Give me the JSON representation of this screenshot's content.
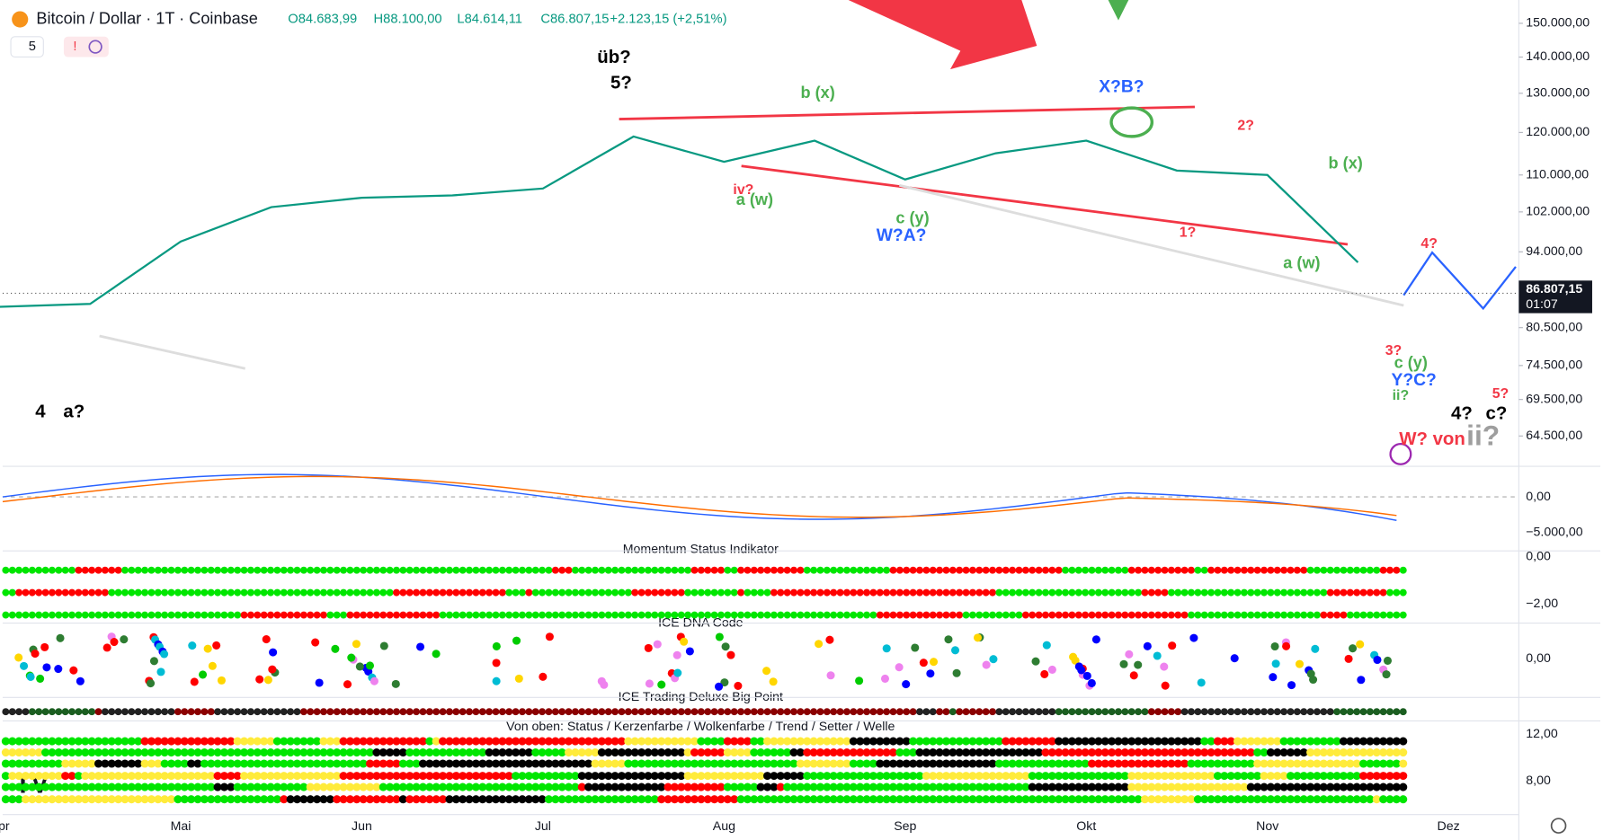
{
  "header": {
    "symbol": "Bitcoin / Dollar · 1T · Coinbase",
    "ohlc": [
      "O84.683,99",
      "H88.100,00",
      "L84.614,11",
      "C86.807,15",
      "+2.123,15 (+2,51%)"
    ],
    "interval_badge": "5",
    "alert": "!"
  },
  "chart_data": {
    "type": "line",
    "log_scale": true,
    "grid": false,
    "categories": [
      "Apr",
      null,
      "Mai",
      null,
      "Jun",
      null,
      "Jul",
      null,
      "Aug",
      null,
      "Sep",
      null,
      "Okt",
      null,
      "Nov",
      null,
      "Dez"
    ],
    "series": [
      {
        "name": "BTC/USD",
        "color": "#089981",
        "values": [
          84000,
          84500,
          96000,
          103000,
          105000,
          105500,
          107000,
          119000,
          113000,
          118000,
          109000,
          115000,
          118000,
          111000,
          110000,
          92000,
          null
        ]
      }
    ],
    "ylim": [
      61000,
      155700
    ],
    "yticks": [
      {
        "value": 150000,
        "label": "150.000,00"
      },
      {
        "value": 140000,
        "label": "140.000,00"
      },
      {
        "value": 130000,
        "label": "130.000,00"
      },
      {
        "value": 120000,
        "label": "120.000,00"
      },
      {
        "value": 110000,
        "label": "110.000,00"
      },
      {
        "value": 102000,
        "label": "102.000,00"
      },
      {
        "value": 94000,
        "label": "94.000,00"
      },
      {
        "value": 80500,
        "label": "80.500,00"
      },
      {
        "value": 74500,
        "label": "74.500,00"
      },
      {
        "value": 69500,
        "label": "69.500,00"
      },
      {
        "value": 64500,
        "label": "64.500,00"
      }
    ],
    "last_price": {
      "value": 86807.15,
      "label": "86.807,15",
      "countdown": "01:07"
    },
    "annotations": [
      {
        "text": "4",
        "color": "#000"
      },
      {
        "text": "a?",
        "color": "#000"
      },
      {
        "text": "üb?",
        "color": "#000"
      },
      {
        "text": "5?",
        "color": "#000"
      },
      {
        "text": "b (x)",
        "color": "#4caf50"
      },
      {
        "text": "X?B?",
        "color": "#2962ff"
      },
      {
        "text": "iv?",
        "color": "#f23645"
      },
      {
        "text": "a (w)",
        "color": "#4caf50"
      },
      {
        "text": "c (y)",
        "color": "#4caf50"
      },
      {
        "text": "W?A?",
        "color": "#2962ff"
      },
      {
        "text": "2?",
        "color": "#f23645"
      },
      {
        "text": "b (x)",
        "color": "#4caf50"
      },
      {
        "text": "1?",
        "color": "#f23645"
      },
      {
        "text": "a (w)",
        "color": "#4caf50"
      },
      {
        "text": "4?",
        "color": "#f23645"
      },
      {
        "text": "3?",
        "color": "#f23645"
      },
      {
        "text": "c (y)",
        "color": "#4caf50"
      },
      {
        "text": "Y?C?",
        "color": "#2962ff"
      },
      {
        "text": "ii?",
        "color": "#4caf50"
      },
      {
        "text": "4?",
        "color": "#000"
      },
      {
        "text": "c?",
        "color": "#000"
      },
      {
        "text": "5?",
        "color": "#f23645"
      },
      {
        "text": "W? von",
        "color": "#f23645"
      },
      {
        "text": "ii?",
        "color": "#9e9e9e"
      }
    ]
  },
  "panes": [
    {
      "title": null,
      "ticks": [
        "0,00",
        "−5.000,00"
      ]
    },
    {
      "title": "Momentum Status Indikator",
      "ticks": [
        "0,00",
        "−2,00"
      ]
    },
    {
      "title": "ICE DNA Code",
      "ticks": [
        "0,00"
      ]
    },
    {
      "title": "ICE Trading Deluxe Big Point",
      "ticks": []
    },
    {
      "title": "Von oben: Status / Kerzenfarbe / Wolkenfarbe / Trend / Setter / Welle",
      "ticks": [
        "12,00",
        "8,00"
      ]
    }
  ]
}
